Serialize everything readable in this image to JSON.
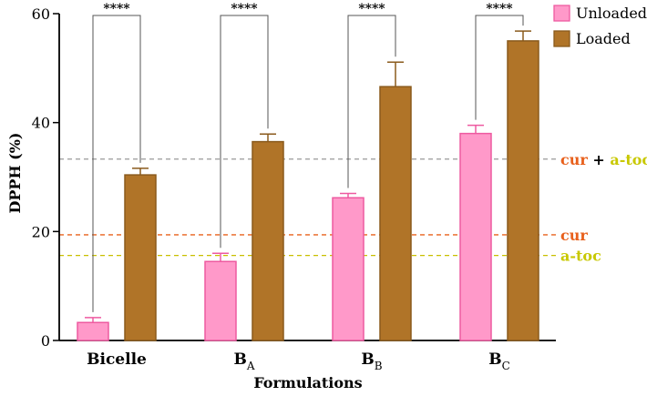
{
  "chart_data": {
    "type": "bar",
    "xlabel": "Formulations",
    "ylabel": "DPPH (%)",
    "ylim": [
      0,
      60
    ],
    "yticks": [
      "0",
      "20",
      "40",
      "60"
    ],
    "grid": false,
    "categories": [
      {
        "main": "Bicelle",
        "sub": ""
      },
      {
        "main": "B",
        "sub": "A"
      },
      {
        "main": "B",
        "sub": "B"
      },
      {
        "main": "B",
        "sub": "C"
      }
    ],
    "series": [
      {
        "name": "Unloaded",
        "color": "#ff99c9",
        "edge": "#ee5aa0",
        "values": [
          3.3,
          14.5,
          26.2,
          38.0
        ],
        "errors": [
          0.9,
          1.5,
          0.8,
          1.5
        ]
      },
      {
        "name": "Loaded",
        "color": "#b07428",
        "edge": "#8a5a1c",
        "values": [
          30.4,
          36.5,
          46.6,
          55.0
        ],
        "errors": [
          1.2,
          1.4,
          4.5,
          1.8
        ]
      }
    ],
    "significance": [
      "****",
      "****",
      "****",
      "****"
    ],
    "reference_lines": [
      {
        "parts": [
          {
            "text": "cur",
            "color": "#e8601c"
          },
          {
            "text": " + ",
            "color": "#000000"
          },
          {
            "text": "a-toc",
            "color": "#c8c800"
          }
        ],
        "value": 33.3,
        "line_color": "#999999"
      },
      {
        "parts": [
          {
            "text": "cur",
            "color": "#e8601c"
          }
        ],
        "value": 19.4,
        "line_color": "#e8601c"
      },
      {
        "parts": [
          {
            "text": "a-toc",
            "color": "#c8c800"
          }
        ],
        "value": 15.6,
        "line_color": "#c8c000"
      }
    ],
    "legend_position": "top-right"
  }
}
